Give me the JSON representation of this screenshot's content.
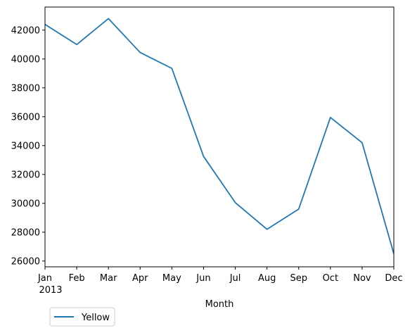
{
  "chart_data": {
    "type": "line",
    "xlabel": "Month",
    "ylabel": "",
    "categories": [
      "Jan",
      "Feb",
      "Mar",
      "Apr",
      "May",
      "Jun",
      "Jul",
      "Aug",
      "Sep",
      "Oct",
      "Nov",
      "Dec"
    ],
    "year_label": "2013",
    "series": [
      {
        "name": "Yellow",
        "color": "#1f77b4",
        "values": [
          42400,
          41000,
          42800,
          40450,
          39350,
          33250,
          30050,
          28200,
          29600,
          35950,
          34200,
          26500
        ]
      }
    ],
    "ylim": [
      25600,
      43600
    ],
    "yticks": [
      26000,
      28000,
      30000,
      32000,
      34000,
      36000,
      38000,
      40000,
      42000
    ],
    "grid": false,
    "legend_position": "below-left"
  }
}
